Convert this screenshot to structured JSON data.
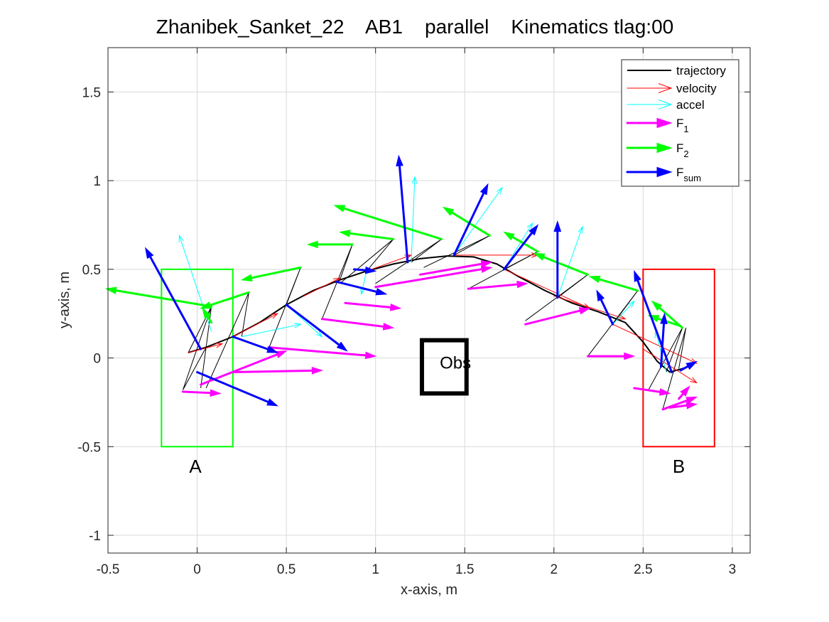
{
  "chart_data": {
    "type": "line",
    "title": "Zhanibek_Sanket_22    AB1    parallel    Kinematics tlag:00",
    "xlabel": "x-axis, m",
    "ylabel": "y-axis, m",
    "xlim": [
      -0.5,
      3.1
    ],
    "ylim": [
      -1.1,
      1.75
    ],
    "xticks": [
      -0.5,
      0,
      0.5,
      1,
      1.5,
      2,
      2.5,
      3
    ],
    "yticks": [
      -1,
      -0.5,
      0,
      0.5,
      1,
      1.5
    ],
    "xtick_labels": [
      "-0.5",
      "0",
      "0.5",
      "1",
      "1.5",
      "2",
      "2.5",
      "3"
    ],
    "ytick_labels": [
      "-1",
      "-0.5",
      "0",
      "0.5",
      "1",
      "1.5"
    ],
    "grid": true,
    "legend_position": "top-right",
    "legend": [
      {
        "key": "trajectory",
        "label": "trajectory",
        "sub": "",
        "color": "#000000",
        "style": "line"
      },
      {
        "key": "velocity",
        "label": "velocity",
        "sub": "",
        "color": "#ff0000",
        "style": "thin-arrow"
      },
      {
        "key": "accel",
        "label": "accel",
        "sub": "",
        "color": "#00ffff",
        "style": "thin-arrow"
      },
      {
        "key": "F1",
        "label": "F",
        "sub": "1",
        "color": "#ff00ff",
        "style": "thick-arrow"
      },
      {
        "key": "F2",
        "label": "F",
        "sub": "2",
        "color": "#00ff00",
        "style": "thick-arrow"
      },
      {
        "key": "Fsum",
        "label": "F",
        "sub": "sum",
        "color": "#0000ff",
        "style": "thick-arrow"
      }
    ],
    "regions": [
      {
        "label": "A",
        "x0": -0.2,
        "x1": 0.2,
        "y0": -0.5,
        "y1": 0.5,
        "color": "#00ff00",
        "label_at": [
          -0.01,
          -0.61
        ]
      },
      {
        "label": "B",
        "x0": 2.5,
        "x1": 2.9,
        "y0": -0.5,
        "y1": 0.5,
        "color": "#ff0000",
        "label_at": [
          2.7,
          -0.61
        ]
      }
    ],
    "obstacle": {
      "label": "Obs",
      "x0": 1.26,
      "x1": 1.51,
      "y0": -0.2,
      "y1": 0.1,
      "color": "#000000",
      "label_at": [
        1.36,
        -0.06
      ]
    },
    "trajectory": [
      [
        -0.05,
        0.03
      ],
      [
        0.05,
        0.06
      ],
      [
        0.2,
        0.12
      ],
      [
        0.35,
        0.2
      ],
      [
        0.5,
        0.3
      ],
      [
        0.65,
        0.38
      ],
      [
        0.8,
        0.44
      ],
      [
        0.95,
        0.49
      ],
      [
        1.1,
        0.53
      ],
      [
        1.25,
        0.56
      ],
      [
        1.4,
        0.575
      ],
      [
        1.55,
        0.57
      ],
      [
        1.68,
        0.53
      ],
      [
        1.8,
        0.46
      ],
      [
        1.95,
        0.38
      ],
      [
        2.1,
        0.31
      ],
      [
        2.25,
        0.26
      ],
      [
        2.4,
        0.2
      ],
      [
        2.5,
        0.09
      ],
      [
        2.58,
        -0.02
      ],
      [
        2.65,
        -0.08
      ],
      [
        2.72,
        -0.06
      ],
      [
        2.78,
        -0.04
      ]
    ],
    "body_links": [
      [
        [
          -0.05,
          0.03
        ],
        [
          0.08,
          0.29
        ],
        [
          0.02,
          -0.17
        ]
      ],
      [
        [
          0.05,
          0.06
        ],
        [
          -0.08,
          -0.18
        ],
        [
          0.08,
          0.29
        ]
      ],
      [
        [
          0.25,
          0.12
        ],
        [
          0.29,
          0.37
        ],
        [
          0.05,
          -0.17
        ]
      ],
      [
        [
          0.5,
          0.3
        ],
        [
          0.58,
          0.51
        ],
        [
          0.4,
          0.05
        ]
      ],
      [
        [
          0.8,
          0.44
        ],
        [
          0.87,
          0.64
        ],
        [
          0.7,
          0.22
        ]
      ],
      [
        [
          0.95,
          0.49
        ],
        [
          1.1,
          0.67
        ],
        [
          0.8,
          0.42
        ]
      ],
      [
        [
          1.2,
          0.54
        ],
        [
          1.37,
          0.67
        ],
        [
          1.0,
          0.42
        ]
      ],
      [
        [
          1.44,
          0.58
        ],
        [
          1.64,
          0.69
        ],
        [
          1.27,
          0.51
        ]
      ],
      [
        [
          1.72,
          0.5
        ],
        [
          1.91,
          0.6
        ],
        [
          1.52,
          0.39
        ]
      ],
      [
        [
          2.02,
          0.34
        ],
        [
          2.19,
          0.47
        ],
        [
          1.84,
          0.21
        ]
      ],
      [
        [
          2.33,
          0.19
        ],
        [
          2.47,
          0.38
        ],
        [
          2.19,
          0.01
        ]
      ],
      [
        [
          2.63,
          -0.08
        ],
        [
          2.72,
          0.17
        ],
        [
          2.53,
          -0.18
        ]
      ],
      [
        [
          2.7,
          -0.06
        ],
        [
          2.74,
          0.17
        ],
        [
          2.61,
          -0.29
        ]
      ]
    ],
    "series": [
      {
        "name": "velocity",
        "color": "#ff0000",
        "width": 1,
        "head": 9,
        "vectors": [
          [
            -0.05,
            0.03,
            0.14,
            0.08
          ],
          [
            0.2,
            0.12,
            0.45,
            0.25
          ],
          [
            0.6,
            0.35,
            0.8,
            0.45
          ],
          [
            0.95,
            0.49,
            1.2,
            0.58
          ],
          [
            1.44,
            0.58,
            1.91,
            0.58
          ],
          [
            1.72,
            0.5,
            2.2,
            0.28
          ],
          [
            2.0,
            0.35,
            2.4,
            0.22
          ],
          [
            2.33,
            0.19,
            2.8,
            -0.03
          ],
          [
            2.5,
            0.05,
            2.8,
            -0.14
          ]
        ]
      },
      {
        "name": "accel",
        "color": "#00ffff",
        "width": 1,
        "head": 9,
        "vectors": [
          [
            0.08,
            0.15,
            -0.1,
            0.69
          ],
          [
            0.25,
            0.12,
            0.58,
            0.19
          ],
          [
            0.5,
            0.3,
            0.7,
            0.12
          ],
          [
            0.95,
            0.49,
            0.92,
            0.36
          ],
          [
            1.2,
            0.54,
            1.22,
            1.02
          ],
          [
            1.44,
            0.58,
            1.71,
            0.96
          ],
          [
            1.72,
            0.5,
            1.88,
            0.76
          ],
          [
            2.02,
            0.34,
            2.16,
            0.74
          ],
          [
            2.33,
            0.19,
            2.45,
            0.32
          ],
          [
            2.63,
            -0.08,
            2.57,
            0.15
          ]
        ]
      },
      {
        "name": "F1",
        "color": "#ff00ff",
        "width": 3,
        "head": 14,
        "vectors": [
          [
            -0.08,
            -0.19,
            0.13,
            -0.2
          ],
          [
            0.02,
            -0.15,
            0.5,
            0.04
          ],
          [
            0.2,
            -0.08,
            0.7,
            -0.07
          ],
          [
            0.4,
            0.06,
            1.0,
            0.01
          ],
          [
            0.7,
            0.22,
            1.1,
            0.17
          ],
          [
            0.83,
            0.31,
            1.14,
            0.28
          ],
          [
            1.0,
            0.4,
            1.65,
            0.51
          ],
          [
            1.25,
            0.47,
            1.65,
            0.54
          ],
          [
            1.52,
            0.39,
            1.85,
            0.42
          ],
          [
            1.84,
            0.19,
            2.2,
            0.28
          ],
          [
            2.19,
            0.01,
            2.45,
            0.01
          ],
          [
            2.45,
            -0.17,
            2.65,
            -0.2
          ],
          [
            2.61,
            -0.29,
            2.8,
            -0.22
          ],
          [
            2.65,
            -0.28,
            2.8,
            -0.26
          ],
          [
            2.7,
            -0.23,
            2.76,
            -0.16
          ]
        ]
      },
      {
        "name": "F2",
        "color": "#00ff00",
        "width": 3,
        "head": 14,
        "vectors": [
          [
            0.08,
            0.29,
            -0.51,
            0.39
          ],
          [
            0.29,
            0.37,
            0.02,
            0.28
          ],
          [
            0.58,
            0.51,
            0.25,
            0.44
          ],
          [
            0.87,
            0.64,
            0.62,
            0.64
          ],
          [
            1.1,
            0.67,
            0.8,
            0.71
          ],
          [
            1.37,
            0.67,
            0.77,
            0.86
          ],
          [
            1.64,
            0.69,
            1.38,
            0.85
          ],
          [
            1.91,
            0.6,
            1.72,
            0.71
          ],
          [
            2.19,
            0.47,
            1.89,
            0.59
          ],
          [
            2.47,
            0.38,
            2.2,
            0.46
          ],
          [
            2.72,
            0.17,
            2.55,
            0.32
          ],
          [
            2.71,
            0.18,
            2.53,
            0.24
          ],
          [
            0.08,
            0.2,
            0.03,
            0.28
          ]
        ]
      },
      {
        "name": "Fsum",
        "color": "#0000ff",
        "width": 3,
        "head": 14,
        "vectors": [
          [
            0.02,
            0.05,
            -0.29,
            0.62
          ],
          [
            0.2,
            0.12,
            0.45,
            0.03
          ],
          [
            0.0,
            -0.08,
            0.45,
            -0.27
          ],
          [
            0.78,
            0.43,
            1.06,
            0.36
          ],
          [
            0.5,
            0.3,
            0.84,
            0.04
          ],
          [
            0.88,
            0.5,
            1.0,
            0.49
          ],
          [
            1.18,
            0.54,
            1.13,
            1.14
          ],
          [
            1.44,
            0.58,
            1.63,
            0.98
          ],
          [
            1.72,
            0.5,
            1.91,
            0.75
          ],
          [
            2.02,
            0.34,
            2.02,
            0.77
          ],
          [
            2.33,
            0.19,
            2.24,
            0.38
          ],
          [
            2.66,
            -0.08,
            2.45,
            0.49
          ],
          [
            2.6,
            -0.05,
            2.62,
            0.25
          ],
          [
            2.71,
            -0.07,
            2.8,
            -0.02
          ]
        ]
      }
    ]
  }
}
